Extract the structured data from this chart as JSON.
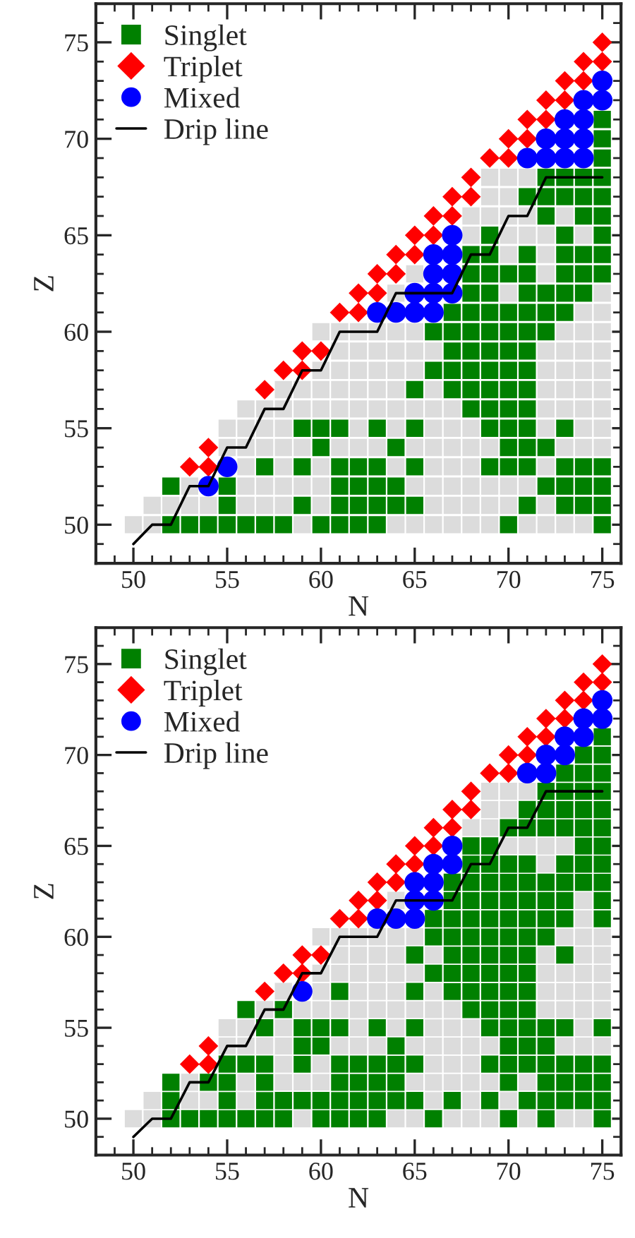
{
  "chart_data": [
    {
      "type": "scatter",
      "xlabel": "N",
      "ylabel": "Z",
      "xlim": [
        48,
        76
      ],
      "ylim": [
        48,
        77
      ],
      "xticks": [
        50,
        55,
        60,
        65,
        70,
        75
      ],
      "yticks": [
        50,
        55,
        60,
        65,
        70,
        75
      ],
      "grid": false,
      "legend": "top left",
      "series": [
        {
          "type": "scatter",
          "marker": "square",
          "color": "#dcdcdc",
          "x": [
            50,
            51,
            59,
            64,
            65,
            66,
            67,
            68,
            69,
            71,
            72,
            73,
            74,
            51,
            52,
            53,
            54,
            56,
            57,
            58,
            60,
            66,
            67,
            68,
            69,
            70,
            72,
            53,
            56,
            57,
            58,
            59,
            60,
            65,
            66,
            67,
            68,
            69,
            70,
            71,
            56,
            58,
            60,
            64,
            66,
            67,
            68,
            72,
            55,
            56,
            57,
            58,
            59,
            61,
            62,
            63,
            65,
            66,
            67,
            68,
            69,
            73,
            74,
            75,
            55,
            56,
            57,
            58,
            62,
            64,
            66,
            67,
            68,
            72,
            74,
            75,
            56,
            57,
            58,
            59,
            60,
            61,
            62,
            63,
            64,
            65,
            66,
            67,
            72,
            73,
            74,
            75,
            58,
            59,
            60,
            61,
            62,
            63,
            64,
            66,
            72,
            73,
            74,
            75,
            60,
            61,
            62,
            63,
            64,
            65,
            72,
            73,
            74,
            75,
            61,
            62,
            63,
            64,
            65,
            66,
            72,
            73,
            74,
            75,
            60,
            61,
            62,
            63,
            64,
            65,
            73,
            74,
            75,
            74,
            75,
            64,
            70,
            75,
            65,
            72,
            70,
            72,
            68,
            70,
            71,
            72,
            74,
            68,
            69,
            70,
            71,
            73,
            69,
            70,
            69,
            70,
            71
          ],
          "values": [
            50,
            50,
            50,
            50,
            50,
            50,
            50,
            50,
            50,
            50,
            50,
            50,
            50,
            51,
            51,
            51,
            51,
            51,
            51,
            51,
            51,
            51,
            51,
            51,
            51,
            51,
            51,
            52,
            52,
            52,
            52,
            52,
            52,
            52,
            52,
            52,
            52,
            52,
            52,
            52,
            53,
            53,
            53,
            53,
            53,
            53,
            53,
            53,
            54,
            54,
            54,
            54,
            54,
            54,
            54,
            54,
            54,
            54,
            54,
            54,
            54,
            54,
            54,
            54,
            55,
            55,
            55,
            55,
            55,
            55,
            55,
            55,
            55,
            55,
            55,
            55,
            56,
            56,
            56,
            56,
            56,
            56,
            56,
            56,
            56,
            56,
            56,
            56,
            56,
            56,
            56,
            56,
            57,
            57,
            57,
            57,
            57,
            57,
            57,
            57,
            57,
            57,
            57,
            57,
            58,
            58,
            58,
            58,
            58,
            58,
            58,
            58,
            58,
            58,
            59,
            59,
            59,
            59,
            59,
            59,
            59,
            59,
            59,
            59,
            60,
            60,
            60,
            60,
            60,
            60,
            60,
            60,
            60,
            61,
            61,
            62,
            62,
            62,
            63,
            63,
            64,
            64,
            65,
            65,
            65,
            65,
            65,
            66,
            66,
            66,
            66,
            66,
            67,
            67,
            68,
            68,
            68
          ]
        },
        {
          "type": "scatter",
          "name": "Singlet",
          "marker": "square",
          "color": "#008000",
          "x": [
            52,
            53,
            54,
            55,
            56,
            57,
            58,
            60,
            61,
            62,
            63,
            70,
            75,
            55,
            59,
            61,
            62,
            63,
            64,
            65,
            71,
            73,
            74,
            75,
            52,
            55,
            61,
            62,
            63,
            64,
            72,
            73,
            74,
            75,
            57,
            59,
            61,
            62,
            63,
            65,
            69,
            70,
            71,
            73,
            74,
            75,
            60,
            64,
            70,
            71,
            72,
            59,
            60,
            61,
            63,
            65,
            69,
            70,
            71,
            73,
            68,
            69,
            70,
            71,
            65,
            67,
            68,
            69,
            70,
            71,
            66,
            67,
            68,
            69,
            70,
            71,
            67,
            68,
            69,
            70,
            71,
            66,
            67,
            68,
            69,
            70,
            71,
            72,
            67,
            68,
            69,
            70,
            71,
            72,
            73,
            68,
            69,
            71,
            72,
            73,
            74,
            68,
            69,
            70,
            71,
            73,
            74,
            75,
            68,
            69,
            71,
            73,
            74,
            75,
            69,
            73,
            75,
            72,
            74,
            75,
            71,
            72,
            73,
            74,
            75,
            72,
            73,
            74,
            75,
            75,
            75,
            75
          ],
          "values": [
            50,
            50,
            50,
            50,
            50,
            50,
            50,
            50,
            50,
            50,
            50,
            50,
            50,
            51,
            51,
            51,
            51,
            51,
            51,
            51,
            51,
            51,
            51,
            51,
            52,
            52,
            52,
            52,
            52,
            52,
            52,
            52,
            52,
            52,
            53,
            53,
            53,
            53,
            53,
            53,
            53,
            53,
            53,
            53,
            53,
            53,
            54,
            54,
            54,
            54,
            54,
            55,
            55,
            55,
            55,
            55,
            55,
            55,
            55,
            55,
            56,
            56,
            56,
            56,
            57,
            57,
            57,
            57,
            57,
            57,
            58,
            58,
            58,
            58,
            58,
            58,
            59,
            59,
            59,
            59,
            59,
            60,
            60,
            60,
            60,
            60,
            60,
            60,
            61,
            61,
            61,
            61,
            61,
            61,
            61,
            62,
            62,
            62,
            62,
            62,
            62,
            63,
            63,
            63,
            63,
            63,
            63,
            63,
            64,
            64,
            64,
            64,
            64,
            64,
            65,
            65,
            65,
            66,
            66,
            66,
            67,
            67,
            67,
            67,
            67,
            68,
            68,
            68,
            68,
            69,
            70,
            71
          ]
        },
        {
          "type": "scatter",
          "name": "Triplet",
          "marker": "diamond",
          "color": "#ff0000",
          "x": [
            53,
            54,
            54,
            57,
            58,
            59,
            59,
            60,
            61,
            62,
            62,
            63,
            63,
            64,
            64,
            65,
            65,
            66,
            66,
            67,
            67,
            68,
            68,
            69,
            70,
            70,
            71,
            71,
            72,
            72,
            73,
            73,
            74,
            74,
            75,
            75
          ],
          "values": [
            53,
            53,
            54,
            57,
            58,
            58,
            59,
            59,
            61,
            61,
            62,
            62,
            63,
            63,
            64,
            64,
            65,
            65,
            66,
            66,
            67,
            67,
            68,
            69,
            69,
            70,
            70,
            71,
            71,
            72,
            72,
            73,
            73,
            74,
            74,
            75
          ]
        },
        {
          "type": "scatter",
          "name": "Mixed",
          "marker": "circle",
          "color": "#0000ff",
          "x": [
            54,
            55,
            63,
            64,
            65,
            66,
            65,
            66,
            67,
            66,
            67,
            66,
            67,
            67,
            71,
            72,
            73,
            74,
            72,
            73,
            74,
            73,
            74,
            74,
            75,
            75
          ],
          "values": [
            52,
            53,
            61,
            61,
            61,
            61,
            62,
            62,
            62,
            63,
            63,
            64,
            64,
            65,
            69,
            69,
            69,
            69,
            70,
            70,
            70,
            71,
            71,
            72,
            72,
            73
          ]
        },
        {
          "type": "line",
          "name": "Drip line",
          "line_style": "solid",
          "marker": "none",
          "color": "#000000",
          "x": [
            50,
            51,
            52,
            53,
            54,
            55,
            56,
            57,
            58,
            59,
            60,
            61,
            63,
            64,
            67,
            68,
            69,
            70,
            71,
            72,
            75
          ],
          "values": [
            49,
            50,
            50,
            52,
            52,
            54,
            54,
            56,
            56,
            58,
            58,
            60,
            60,
            62,
            62,
            64,
            64,
            66,
            66,
            68,
            68
          ]
        }
      ]
    },
    {
      "type": "scatter",
      "xlabel": "N",
      "ylabel": "Z",
      "xlim": [
        48,
        76
      ],
      "ylim": [
        48,
        77
      ],
      "xticks": [
        50,
        55,
        60,
        65,
        70,
        75
      ],
      "yticks": [
        50,
        55,
        60,
        65,
        70,
        75
      ],
      "grid": false,
      "legend": "top left",
      "series": [
        {
          "type": "scatter",
          "marker": "square",
          "color": "#dcdcdc",
          "x": [
            50,
            51,
            59,
            64,
            65,
            67,
            68,
            69,
            71,
            73,
            74,
            51,
            53,
            54,
            56,
            66,
            68,
            70,
            53,
            56,
            58,
            59,
            60,
            65,
            66,
            67,
            68,
            69,
            71,
            58,
            60,
            66,
            67,
            68,
            55,
            56,
            57,
            58,
            61,
            62,
            63,
            65,
            66,
            67,
            68,
            69,
            73,
            74,
            75,
            55,
            56,
            58,
            62,
            64,
            66,
            67,
            68,
            74,
            57,
            59,
            60,
            61,
            62,
            63,
            64,
            65,
            66,
            67,
            72,
            73,
            74,
            75,
            58,
            60,
            62,
            63,
            64,
            66,
            72,
            73,
            74,
            75,
            60,
            61,
            62,
            63,
            64,
            65,
            72,
            73,
            74,
            75,
            61,
            62,
            63,
            64,
            66,
            72,
            74,
            75,
            60,
            61,
            62,
            63,
            64,
            65,
            73,
            74,
            75,
            74,
            64,
            74,
            72,
            70,
            71,
            72,
            73,
            68,
            69,
            69,
            70,
            69,
            70,
            71
          ],
          "values": [
            50,
            50,
            50,
            50,
            50,
            50,
            50,
            50,
            50,
            50,
            50,
            51,
            51,
            51,
            51,
            51,
            51,
            51,
            52,
            52,
            52,
            52,
            52,
            52,
            52,
            52,
            52,
            52,
            52,
            53,
            53,
            53,
            53,
            53,
            54,
            54,
            54,
            54,
            54,
            54,
            54,
            54,
            54,
            54,
            54,
            54,
            54,
            54,
            54,
            55,
            55,
            55,
            55,
            55,
            55,
            55,
            55,
            55,
            56,
            56,
            56,
            56,
            56,
            56,
            56,
            56,
            56,
            56,
            56,
            56,
            56,
            56,
            57,
            57,
            57,
            57,
            57,
            57,
            57,
            57,
            57,
            57,
            58,
            58,
            58,
            58,
            58,
            58,
            58,
            58,
            58,
            58,
            59,
            59,
            59,
            59,
            59,
            59,
            59,
            59,
            60,
            60,
            60,
            60,
            60,
            60,
            60,
            60,
            60,
            61,
            62,
            62,
            64,
            65,
            65,
            65,
            65,
            66,
            66,
            67,
            67,
            68,
            68,
            68
          ]
        },
        {
          "type": "scatter",
          "name": "Singlet",
          "marker": "square",
          "color": "#008000",
          "x": [
            52,
            53,
            54,
            55,
            56,
            57,
            58,
            60,
            61,
            62,
            63,
            66,
            70,
            72,
            75,
            52,
            55,
            57,
            58,
            59,
            60,
            61,
            62,
            63,
            64,
            65,
            67,
            69,
            71,
            72,
            73,
            74,
            75,
            52,
            54,
            55,
            57,
            61,
            62,
            63,
            64,
            70,
            72,
            73,
            74,
            75,
            55,
            56,
            57,
            59,
            61,
            62,
            63,
            64,
            65,
            69,
            70,
            71,
            72,
            73,
            74,
            75,
            59,
            60,
            64,
            70,
            71,
            72,
            57,
            59,
            60,
            61,
            63,
            65,
            69,
            70,
            71,
            72,
            73,
            75,
            56,
            58,
            68,
            69,
            70,
            71,
            61,
            65,
            67,
            68,
            69,
            70,
            71,
            66,
            67,
            68,
            69,
            70,
            71,
            65,
            67,
            68,
            69,
            70,
            71,
            73,
            66,
            67,
            68,
            69,
            70,
            71,
            72,
            66,
            67,
            68,
            69,
            70,
            71,
            72,
            73,
            75,
            67,
            68,
            69,
            70,
            71,
            72,
            73,
            75,
            67,
            68,
            69,
            70,
            71,
            72,
            73,
            74,
            75,
            68,
            69,
            70,
            71,
            73,
            74,
            75,
            68,
            69,
            74,
            75,
            70,
            71,
            72,
            73,
            74,
            75,
            71,
            72,
            73,
            74,
            75,
            72,
            73,
            74,
            75,
            73,
            74,
            75,
            74,
            75,
            75
          ],
          "values": [
            50,
            50,
            50,
            50,
            50,
            50,
            50,
            50,
            50,
            50,
            50,
            50,
            50,
            50,
            50,
            51,
            51,
            51,
            51,
            51,
            51,
            51,
            51,
            51,
            51,
            51,
            51,
            51,
            51,
            51,
            51,
            51,
            51,
            52,
            52,
            52,
            52,
            52,
            52,
            52,
            52,
            52,
            52,
            52,
            52,
            52,
            53,
            53,
            53,
            53,
            53,
            53,
            53,
            53,
            53,
            53,
            53,
            53,
            53,
            53,
            53,
            53,
            54,
            54,
            54,
            54,
            54,
            54,
            55,
            55,
            55,
            55,
            55,
            55,
            55,
            55,
            55,
            55,
            55,
            55,
            56,
            56,
            56,
            56,
            56,
            56,
            57,
            57,
            57,
            57,
            57,
            57,
            57,
            58,
            58,
            58,
            58,
            58,
            58,
            59,
            59,
            59,
            59,
            59,
            59,
            59,
            60,
            60,
            60,
            60,
            60,
            60,
            60,
            61,
            61,
            61,
            61,
            61,
            61,
            61,
            61,
            61,
            62,
            62,
            62,
            62,
            62,
            62,
            62,
            62,
            63,
            63,
            63,
            63,
            63,
            63,
            63,
            63,
            63,
            64,
            64,
            64,
            64,
            64,
            64,
            64,
            65,
            65,
            65,
            65,
            66,
            66,
            66,
            66,
            66,
            66,
            67,
            67,
            67,
            67,
            67,
            68,
            68,
            68,
            68,
            69,
            69,
            69,
            70,
            70,
            71
          ]
        },
        {
          "type": "scatter",
          "name": "Triplet",
          "marker": "diamond",
          "color": "#ff0000",
          "x": [
            53,
            54,
            54,
            57,
            58,
            59,
            59,
            60,
            61,
            62,
            62,
            63,
            63,
            64,
            64,
            65,
            65,
            66,
            66,
            67,
            67,
            68,
            68,
            69,
            70,
            70,
            71,
            71,
            72,
            72,
            73,
            73,
            74,
            74,
            75,
            75
          ],
          "values": [
            53,
            53,
            54,
            57,
            58,
            58,
            59,
            59,
            61,
            61,
            62,
            62,
            63,
            63,
            64,
            64,
            65,
            65,
            66,
            66,
            67,
            67,
            68,
            69,
            69,
            70,
            70,
            71,
            71,
            72,
            72,
            73,
            73,
            74,
            74,
            75
          ]
        },
        {
          "type": "scatter",
          "name": "Mixed",
          "marker": "circle",
          "color": "#0000ff",
          "x": [
            59,
            63,
            64,
            65,
            65,
            66,
            65,
            66,
            66,
            67,
            67,
            71,
            72,
            72,
            73,
            73,
            74,
            74,
            75,
            75
          ],
          "values": [
            57,
            61,
            61,
            61,
            62,
            62,
            63,
            63,
            64,
            64,
            65,
            69,
            69,
            70,
            70,
            71,
            71,
            72,
            72,
            73
          ]
        },
        {
          "type": "line",
          "name": "Drip line",
          "line_style": "solid",
          "marker": "none",
          "color": "#000000",
          "x": [
            50,
            51,
            52,
            53,
            54,
            55,
            56,
            57,
            58,
            59,
            60,
            61,
            63,
            64,
            67,
            68,
            69,
            70,
            71,
            72,
            75
          ],
          "values": [
            49,
            50,
            50,
            52,
            52,
            54,
            54,
            56,
            56,
            58,
            58,
            60,
            60,
            62,
            62,
            64,
            64,
            66,
            66,
            68,
            68
          ]
        }
      ]
    }
  ]
}
